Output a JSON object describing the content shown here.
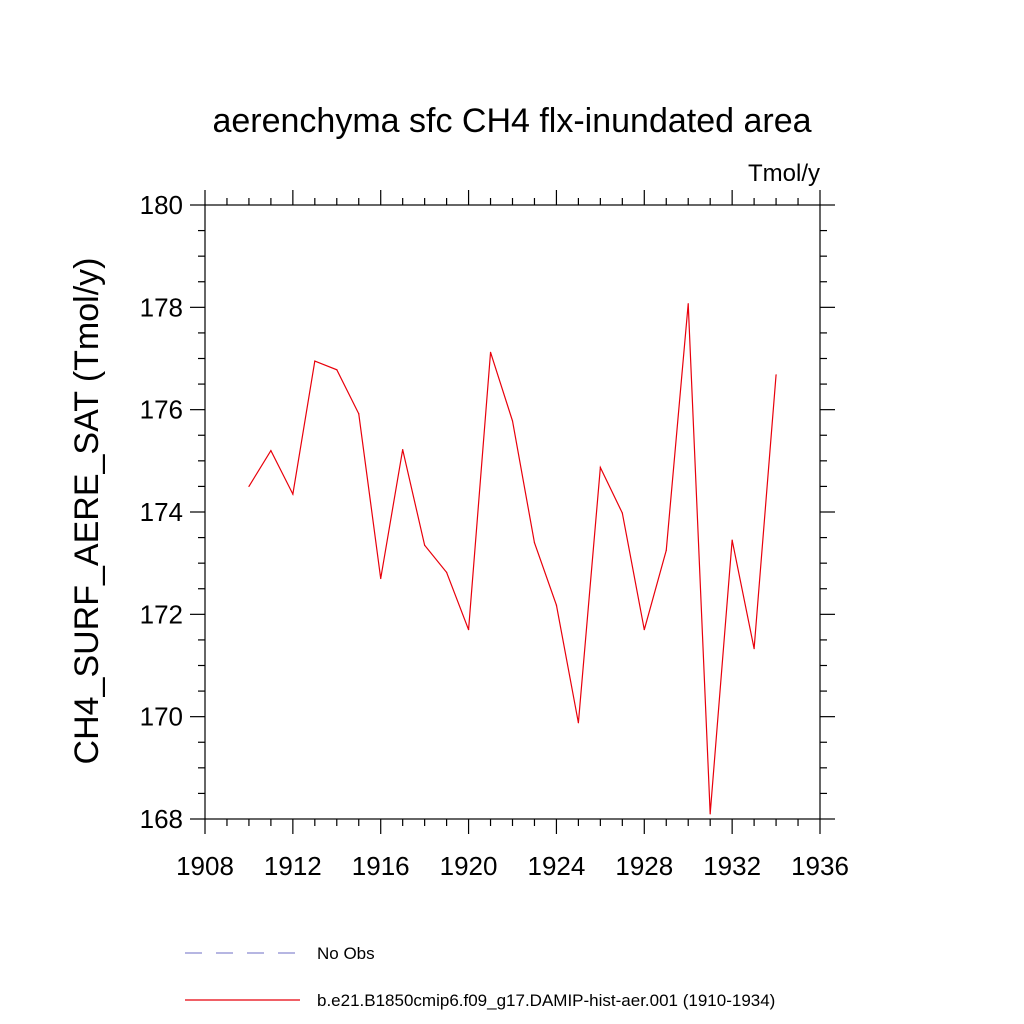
{
  "chart_data": {
    "type": "line",
    "title": "aerenchyma sfc CH4 flx-inundated area",
    "units_label": "Tmol/y",
    "ylabel": "CH4_SURF_AERE_SAT  (Tmol/y)",
    "xlabel": "",
    "xlim": [
      1908,
      1936
    ],
    "ylim": [
      168,
      180
    ],
    "x_ticks": [
      1908,
      1912,
      1916,
      1920,
      1924,
      1928,
      1932,
      1936
    ],
    "y_ticks": [
      168,
      170,
      172,
      174,
      176,
      178,
      180
    ],
    "grid": false,
    "legend_position": "bottom",
    "series": [
      {
        "name": "No Obs",
        "color": "#8a8ad0",
        "style": "dashed",
        "x": [],
        "values": []
      },
      {
        "name": "b.e21.B1850cmip6.f09_g17.DAMIP-hist-aer.001 (1910-1934)",
        "color": "#e8000b",
        "style": "solid",
        "x": [
          1910,
          1911,
          1912,
          1913,
          1914,
          1915,
          1916,
          1917,
          1918,
          1919,
          1920,
          1921,
          1922,
          1923,
          1924,
          1925,
          1926,
          1927,
          1928,
          1929,
          1930,
          1931,
          1932,
          1933,
          1934
        ],
        "values": [
          174.5,
          175.2,
          174.35,
          176.95,
          176.78,
          175.92,
          172.7,
          175.22,
          173.35,
          172.82,
          171.7,
          177.12,
          175.78,
          173.4,
          172.18,
          169.88,
          174.87,
          173.98,
          171.7,
          173.25,
          178.07,
          168.1,
          173.45,
          171.33,
          176.68
        ]
      }
    ]
  }
}
